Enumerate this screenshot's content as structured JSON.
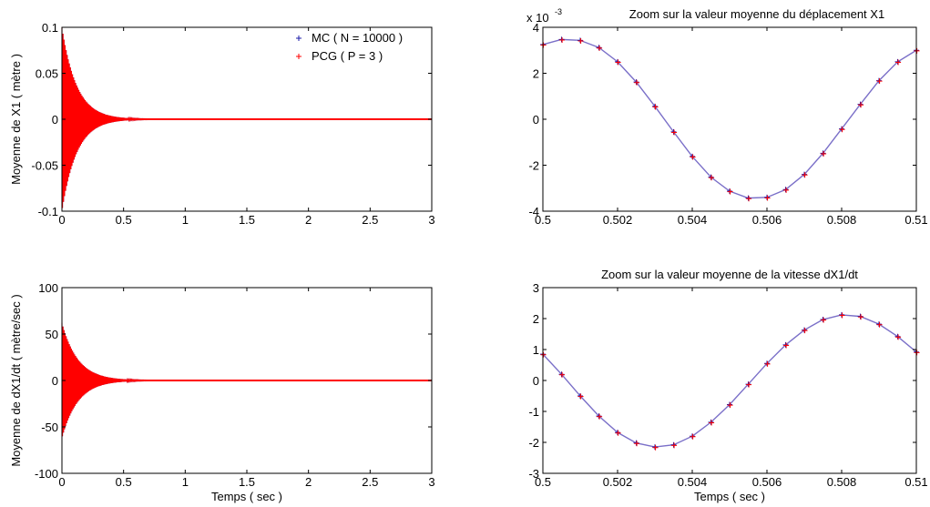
{
  "chart_data": [
    {
      "type": "scatter",
      "title": "",
      "xlabel": "",
      "ylabel": "Moyenne de X1  ( mètre )",
      "xlim": [
        0,
        3
      ],
      "ylim": [
        -0.1,
        0.1
      ],
      "xticks": [
        "0",
        "0.5",
        "1",
        "1.5",
        "2",
        "2.5",
        "3"
      ],
      "yticks": [
        "-0.1",
        "-0.05",
        "0",
        "0.05",
        "0.1"
      ],
      "legend": {
        "placement": "top-right",
        "entries": [
          "MC ( N = 10000 )",
          "PCG ( P = 3 )"
        ]
      },
      "series": [
        {
          "name": "MC ( N = 10000 )",
          "color": "#1a1aa8",
          "marker": "+",
          "envelope": {
            "amplitude": 0.1,
            "decay_time_constant": 0.12,
            "settled_after": 0.75
          }
        },
        {
          "name": "PCG ( P = 3 )",
          "color": "#ff0000",
          "marker": "+",
          "envelope": {
            "amplitude": 0.1,
            "decay_time_constant": 0.12,
            "settled_after": 0.75
          }
        }
      ],
      "grid": false
    },
    {
      "type": "scatter",
      "title": "Zoom sur la valeur moyenne du déplacement X1",
      "exponent_label": "x 10",
      "exponent": "-3",
      "xlabel": "",
      "ylabel": "",
      "xlim": [
        0.5,
        0.51
      ],
      "ylim": [
        -4,
        4
      ],
      "xticks": [
        "0.5",
        "0.502",
        "0.504",
        "0.506",
        "0.508",
        "0.51"
      ],
      "yticks": [
        "-4",
        "-2",
        "0",
        "2",
        "4"
      ],
      "series": [
        {
          "name": "MC ( N = 10000 )",
          "color": "#1a1aa8",
          "marker": "+"
        },
        {
          "name": "PCG ( P = 3 )",
          "color": "#ff0000",
          "marker": "+"
        }
      ],
      "points": {
        "x": [
          0.5,
          0.5005,
          0.501,
          0.5015,
          0.502,
          0.5025,
          0.503,
          0.5035,
          0.504,
          0.5045,
          0.505,
          0.5055,
          0.506,
          0.5065,
          0.507,
          0.5075,
          0.508,
          0.5085,
          0.509,
          0.5095,
          0.51
        ],
        "y": [
          3.25,
          3.47,
          3.43,
          3.12,
          2.5,
          1.62,
          0.56,
          -0.55,
          -1.62,
          -2.52,
          -3.13,
          -3.43,
          -3.4,
          -3.06,
          -2.4,
          -1.48,
          -0.42,
          0.65,
          1.68,
          2.5,
          3.0
        ]
      },
      "grid": false
    },
    {
      "type": "scatter",
      "title": "",
      "xlabel": "Temps ( sec )",
      "ylabel": "Moyenne de dX1/dt  ( mètre/sec )",
      "xlim": [
        0,
        3
      ],
      "ylim": [
        -100,
        100
      ],
      "xticks": [
        "0",
        "0.5",
        "1",
        "1.5",
        "2",
        "2.5",
        "3"
      ],
      "yticks": [
        "-100",
        "-50",
        "0",
        "50",
        "100"
      ],
      "series": [
        {
          "name": "MC ( N = 10000 )",
          "color": "#1a1aa8",
          "marker": "+",
          "envelope": {
            "amplitude": 62,
            "decay_time_constant": 0.13,
            "settled_after": 0.8
          }
        },
        {
          "name": "PCG ( P = 3 )",
          "color": "#ff0000",
          "marker": "+",
          "envelope": {
            "amplitude": 62,
            "decay_time_constant": 0.13,
            "settled_after": 0.8
          }
        }
      ],
      "grid": false
    },
    {
      "type": "scatter",
      "title": "Zoom sur la valeur moyenne de la vitesse dX1/dt",
      "xlabel": "Temps ( sec )",
      "ylabel": "",
      "xlim": [
        0.5,
        0.51
      ],
      "ylim": [
        -3,
        3
      ],
      "xticks": [
        "0.5",
        "0.502",
        "0.504",
        "0.506",
        "0.508",
        "0.51"
      ],
      "yticks": [
        "-3",
        "-2",
        "-1",
        "0",
        "1",
        "2",
        "3"
      ],
      "series": [
        {
          "name": "MC ( N = 10000 )",
          "color": "#1a1aa8",
          "marker": "+"
        },
        {
          "name": "PCG ( P = 3 )",
          "color": "#ff0000",
          "marker": "+"
        }
      ],
      "points": {
        "x": [
          0.5,
          0.5005,
          0.501,
          0.5015,
          0.502,
          0.5025,
          0.503,
          0.5035,
          0.504,
          0.5045,
          0.505,
          0.5055,
          0.506,
          0.5065,
          0.507,
          0.5075,
          0.508,
          0.5085,
          0.509,
          0.5095,
          0.51
        ],
        "y": [
          0.85,
          0.2,
          -0.5,
          -1.15,
          -1.68,
          -2.02,
          -2.15,
          -2.08,
          -1.8,
          -1.35,
          -0.78,
          -0.12,
          0.55,
          1.15,
          1.63,
          1.97,
          2.12,
          2.07,
          1.82,
          1.42,
          0.92
        ]
      },
      "grid": false
    }
  ]
}
